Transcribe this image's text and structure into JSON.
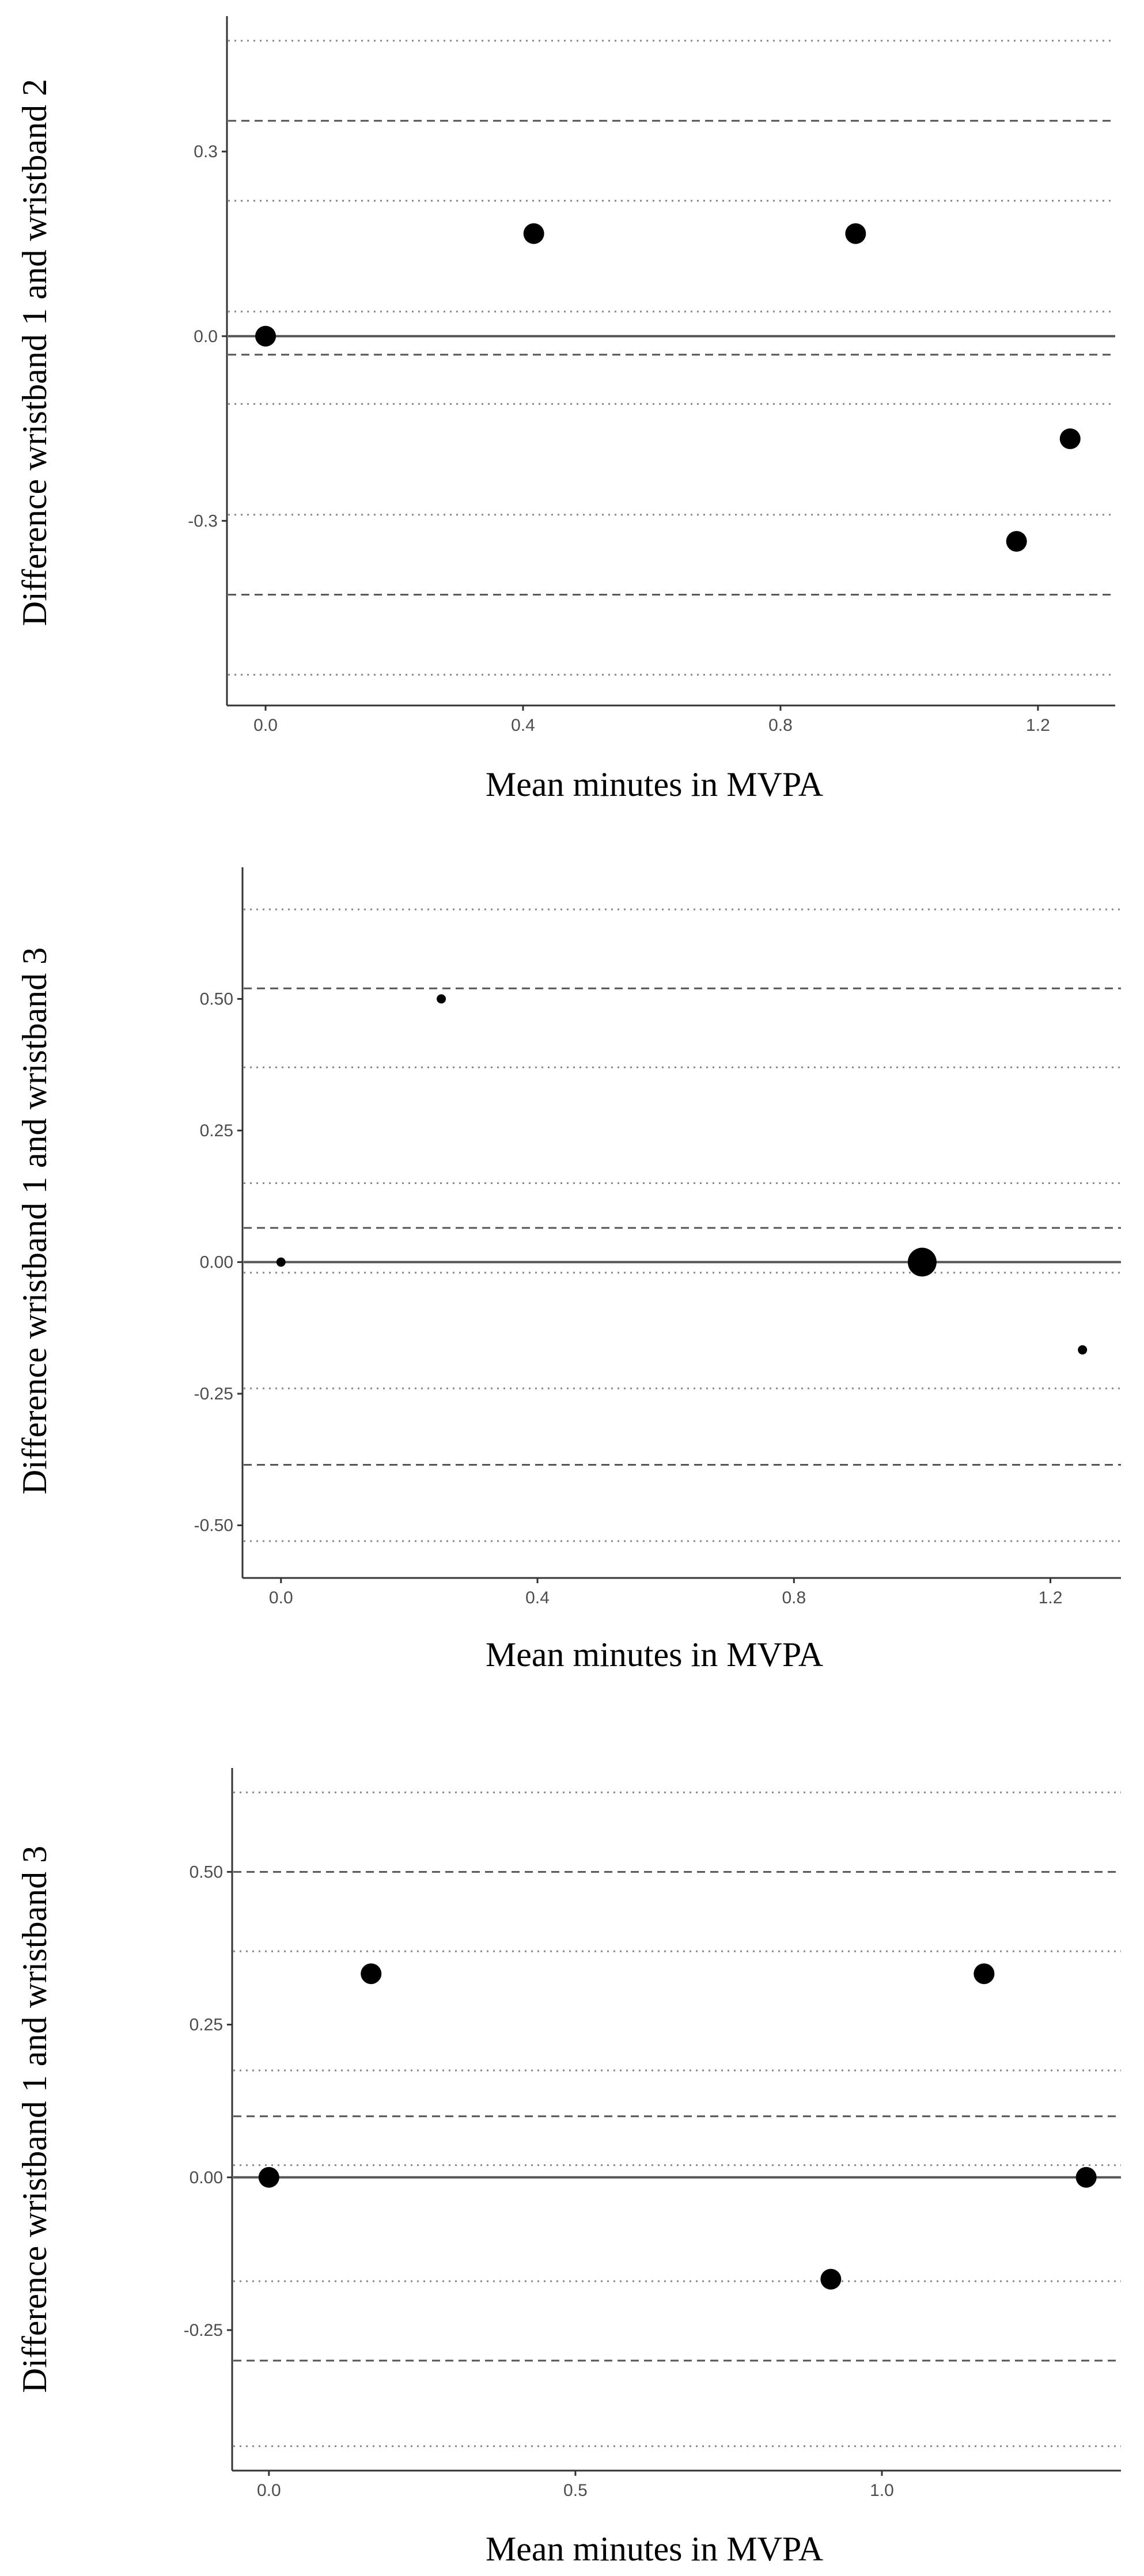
{
  "chart_data": [
    {
      "type": "scatter",
      "xlabel": "Mean minutes in MVPA",
      "ylabel": "Difference wristband 1 and wristband 2",
      "xlim": [
        -0.06,
        1.32
      ],
      "ylim": [
        -0.6,
        0.52
      ],
      "xticks": [
        {
          "value": 0.0,
          "label": "0.0"
        },
        {
          "value": 0.4,
          "label": "0.4"
        },
        {
          "value": 0.8,
          "label": "0.8"
        },
        {
          "value": 1.2,
          "label": "1.2"
        }
      ],
      "yticks": [
        {
          "value": 0.3,
          "label": "0.3"
        },
        {
          "value": 0.0,
          "label": "0.0"
        },
        {
          "value": -0.3,
          "label": "-0.3"
        }
      ],
      "zero_line": 0,
      "dashed_lines": [
        0.35,
        -0.03,
        -0.42
      ],
      "dotted_lines": [
        0.48,
        0.22,
        0.04,
        -0.11,
        -0.29,
        -0.55
      ],
      "points": [
        {
          "x": 0.0,
          "y": 0.0,
          "size": 2
        },
        {
          "x": 0.4167,
          "y": 0.1667,
          "size": 2
        },
        {
          "x": 0.9167,
          "y": 0.1667,
          "size": 2
        },
        {
          "x": 1.1667,
          "y": -0.3333,
          "size": 2
        },
        {
          "x": 1.25,
          "y": -0.1667,
          "size": 2
        }
      ]
    },
    {
      "type": "scatter",
      "xlabel": "Mean minutes in MVPA",
      "ylabel": "Difference wristband 1 and wristband 3",
      "xlim": [
        -0.06,
        1.31
      ],
      "ylim": [
        -0.6,
        0.75
      ],
      "xticks": [
        {
          "value": 0.0,
          "label": "0.0"
        },
        {
          "value": 0.4,
          "label": "0.4"
        },
        {
          "value": 0.8,
          "label": "0.8"
        },
        {
          "value": 1.2,
          "label": "1.2"
        }
      ],
      "yticks": [
        {
          "value": 0.5,
          "label": "0.50"
        },
        {
          "value": 0.25,
          "label": "0.25"
        },
        {
          "value": 0.0,
          "label": "0.00"
        },
        {
          "value": -0.25,
          "label": "-0.25"
        },
        {
          "value": -0.5,
          "label": "-0.50"
        }
      ],
      "zero_line": 0,
      "dashed_lines": [
        0.52,
        0.065,
        -0.385
      ],
      "dotted_lines": [
        0.67,
        0.37,
        0.15,
        -0.02,
        -0.24,
        -0.53
      ],
      "points": [
        {
          "x": 0.0,
          "y": 0.0,
          "size": 1
        },
        {
          "x": 0.25,
          "y": 0.5,
          "size": 1
        },
        {
          "x": 1.0,
          "y": 0.0,
          "size": 3
        },
        {
          "x": 1.25,
          "y": -0.1667,
          "size": 1
        }
      ]
    },
    {
      "type": "scatter",
      "xlabel": "Mean minutes in MVPA",
      "ylabel": "Difference wristband 1 and wristband 3",
      "xlim": [
        -0.06,
        1.39
      ],
      "ylim": [
        -0.48,
        0.67
      ],
      "xticks": [
        {
          "value": 0.0,
          "label": "0.0"
        },
        {
          "value": 0.5,
          "label": "0.5"
        },
        {
          "value": 1.0,
          "label": "1.0"
        }
      ],
      "yticks": [
        {
          "value": 0.5,
          "label": "0.50"
        },
        {
          "value": 0.25,
          "label": "0.25"
        },
        {
          "value": 0.0,
          "label": "0.00"
        },
        {
          "value": -0.25,
          "label": "-0.25"
        }
      ],
      "zero_line": 0,
      "dashed_lines": [
        0.5,
        0.1,
        -0.3
      ],
      "dotted_lines": [
        0.63,
        0.37,
        0.175,
        0.02,
        -0.17,
        -0.44
      ],
      "points": [
        {
          "x": 0.0,
          "y": 0.0,
          "size": 2
        },
        {
          "x": 0.1667,
          "y": 0.3333,
          "size": 2
        },
        {
          "x": 0.9167,
          "y": -0.1667,
          "size": 2
        },
        {
          "x": 1.1667,
          "y": 0.3333,
          "size": 2
        },
        {
          "x": 1.3333,
          "y": 0.0,
          "size": 2
        }
      ]
    }
  ]
}
